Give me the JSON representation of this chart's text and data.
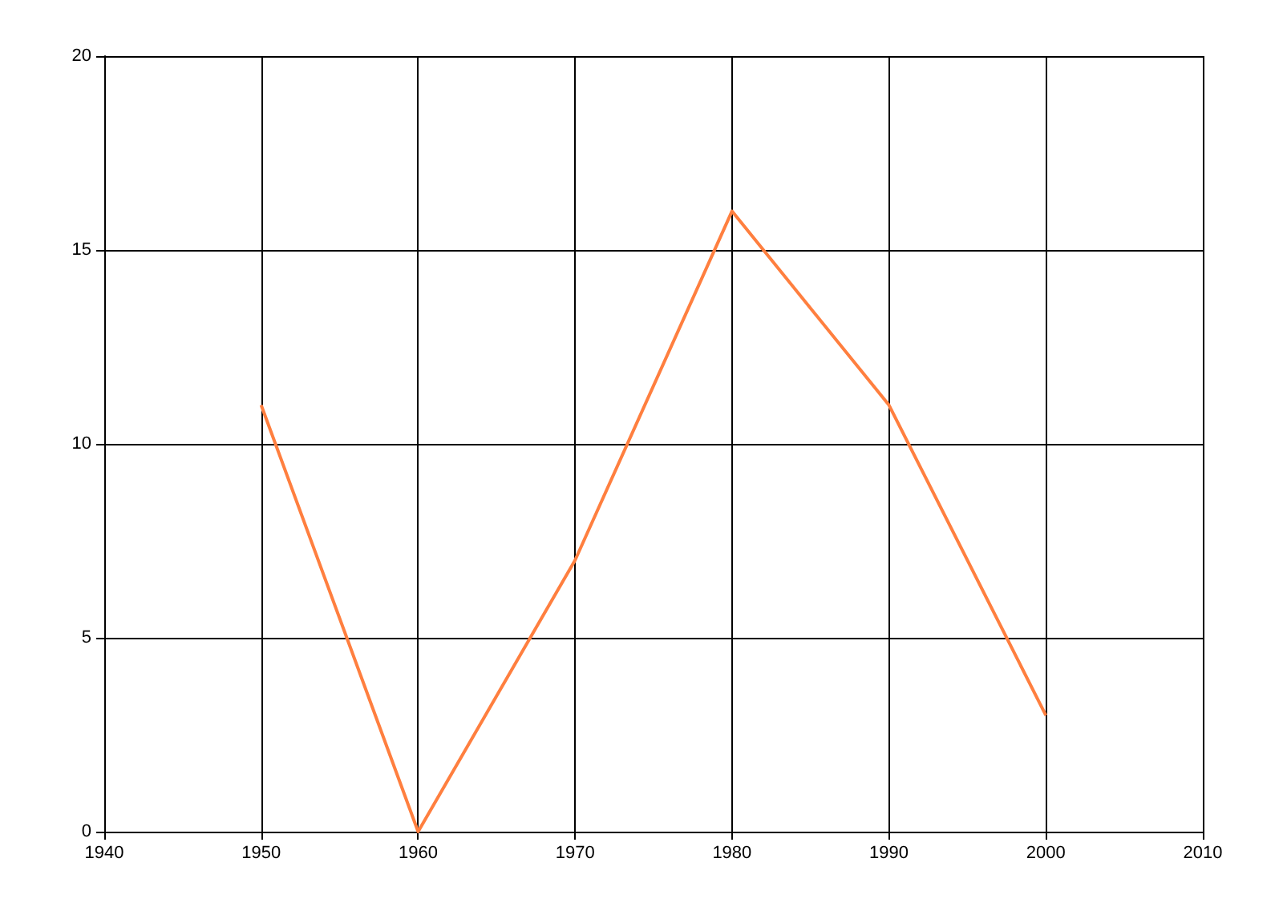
{
  "chart_data": {
    "type": "line",
    "x": [
      1950,
      1960,
      1970,
      1980,
      1990,
      2000
    ],
    "series": [
      {
        "color": "#ff7f3f",
        "values": [
          11,
          0,
          7,
          16,
          11,
          3
        ]
      }
    ],
    "xlim": [
      1940,
      2010
    ],
    "xticks": [
      1940,
      1950,
      1960,
      1970,
      1980,
      1990,
      2000,
      2010
    ],
    "ylim": [
      0,
      20
    ],
    "yticks": [
      0,
      5,
      10,
      15,
      20
    ],
    "grid": true,
    "marker": "none",
    "line_style": "solid"
  }
}
